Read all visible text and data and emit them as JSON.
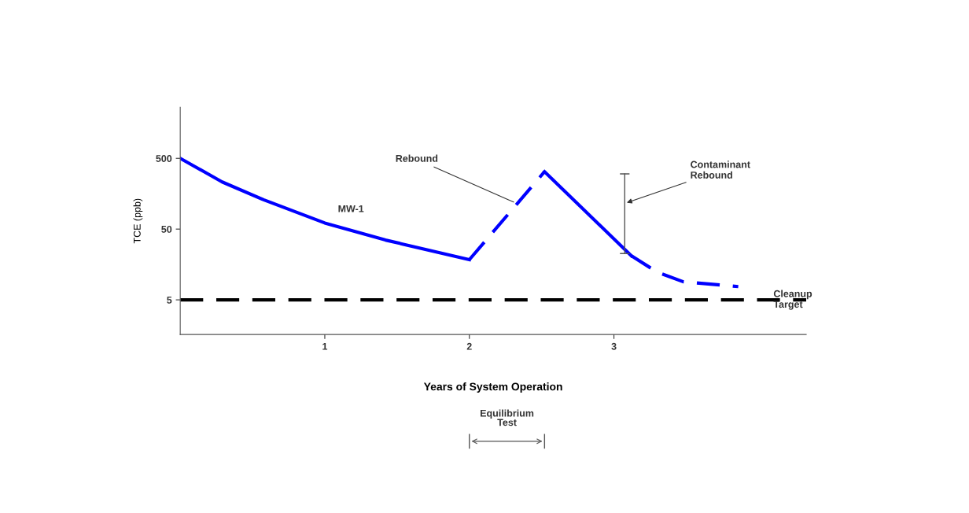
{
  "chart_data": {
    "type": "line",
    "xlabel": "Years of System Operation",
    "ylabel": "TCE (ppb)",
    "log": "y",
    "xlim": [
      0,
      4.33
    ],
    "ylim": [
      1.62,
      2640
    ],
    "xticks": [
      1,
      2,
      3
    ],
    "yticks": [
      5,
      50,
      500
    ],
    "grid": false,
    "legend": false,
    "series": [
      {
        "name": "MW-1",
        "color": "#0000ff",
        "line_style": "solid",
        "x": [
          0,
          0.29,
          0.58,
          1.0,
          1.42,
          2.0
        ],
        "values": [
          500,
          232,
          129,
          61,
          35,
          18.5
        ]
      },
      {
        "color": "#0000ff",
        "line_style": "dashed",
        "x": [
          2.0,
          2.52
        ],
        "values": [
          18.5,
          324
        ]
      },
      {
        "color": "#0000ff",
        "line_style": "solid",
        "x": [
          2.52,
          3.12
        ],
        "values": [
          324,
          21
        ]
      },
      {
        "color": "#0000ff",
        "line_style": "dashed",
        "x": [
          3.12,
          3.3,
          3.48,
          3.86
        ],
        "values": [
          21,
          12.3,
          9.0,
          7.7
        ]
      }
    ],
    "ref_lines": [
      {
        "axis": "y",
        "value": 5,
        "label": "Cleanup\nTarget",
        "color": "#000000",
        "line_style": "dashed"
      }
    ],
    "annotations": [
      {
        "text": "Rebound",
        "x": 2.32,
        "y": 117
      },
      "Contaminant\nRebound",
      "Equilibrium\nTest"
    ]
  }
}
